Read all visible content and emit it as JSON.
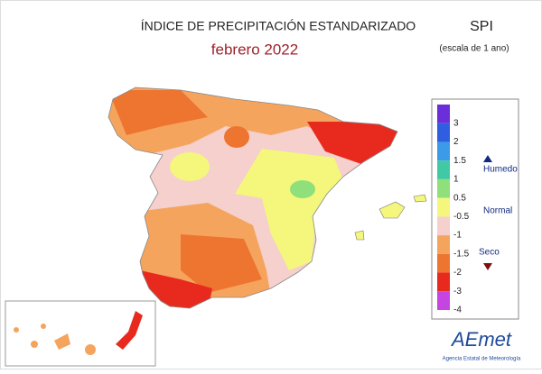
{
  "header": {
    "title": "ÍNDICE DE PRECIPITACIÓN ESTANDARIZADO",
    "subtitle": "febrero 2022",
    "index": "SPI",
    "scale": "(escala de 1 ano)"
  },
  "legend": {
    "labels": [
      3,
      2,
      1.5,
      1,
      0.5,
      -0.5,
      -1,
      -1.5,
      -2,
      -3,
      -4
    ],
    "colors": [
      "#6a2fd8",
      "#2f5ee0",
      "#3b9be8",
      "#41c9a6",
      "#8fe07a",
      "#f4f77c",
      "#f5d0cc",
      "#f5a45e",
      "#ee7530",
      "#e82a1e",
      "#c445e0"
    ],
    "wet": "Humedo",
    "normal": "Normal",
    "dry": "Seco"
  },
  "logo": {
    "name": "AEmet",
    "agency": "Agencia Estatal de Meteorología"
  }
}
